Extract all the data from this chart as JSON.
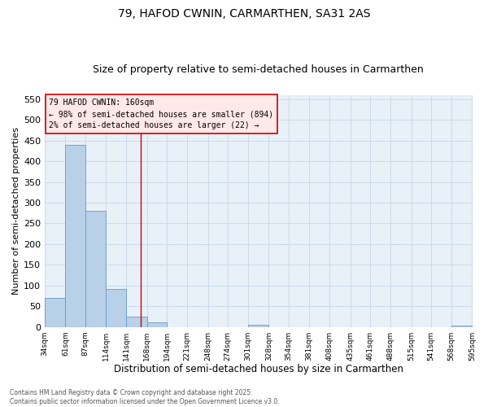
{
  "title": "79, HAFOD CWNIN, CARMARTHEN, SA31 2AS",
  "subtitle": "Size of property relative to semi-detached houses in Carmarthen",
  "xlabel": "Distribution of semi-detached houses by size in Carmarthen",
  "ylabel": "Number of semi-detached properties",
  "footer_line1": "Contains HM Land Registry data © Crown copyright and database right 2025.",
  "footer_line2": "Contains public sector information licensed under the Open Government Licence v3.0.",
  "annotation_line1": "79 HAFOD CWNIN: 160sqm",
  "annotation_line2": "← 98% of semi-detached houses are smaller (894)",
  "annotation_line3": "2% of semi-detached houses are larger (22) →",
  "bar_color": "#b8d0e8",
  "bar_edge_color": "#6699cc",
  "vline_color": "#cc0000",
  "vline_x": 160,
  "bins": [
    34,
    61,
    87,
    114,
    141,
    168,
    194,
    221,
    248,
    274,
    301,
    328,
    354,
    381,
    408,
    435,
    461,
    488,
    515,
    541,
    568
  ],
  "bar_heights": [
    70,
    440,
    281,
    91,
    25,
    11,
    0,
    0,
    0,
    0,
    5,
    0,
    0,
    0,
    0,
    0,
    0,
    0,
    0,
    0,
    4
  ],
  "ylim": [
    0,
    560
  ],
  "yticks": [
    0,
    50,
    100,
    150,
    200,
    250,
    300,
    350,
    400,
    450,
    500,
    550
  ],
  "grid_color": "#c8daea",
  "bg_color": "#e8f0f8",
  "title_fontsize": 10,
  "subtitle_fontsize": 9,
  "annotation_box_facecolor": "#ffe8e8",
  "annotation_box_edge": "#cc0000",
  "tick_label_fontsize": 6.5,
  "ylabel_fontsize": 8,
  "xlabel_fontsize": 8.5
}
